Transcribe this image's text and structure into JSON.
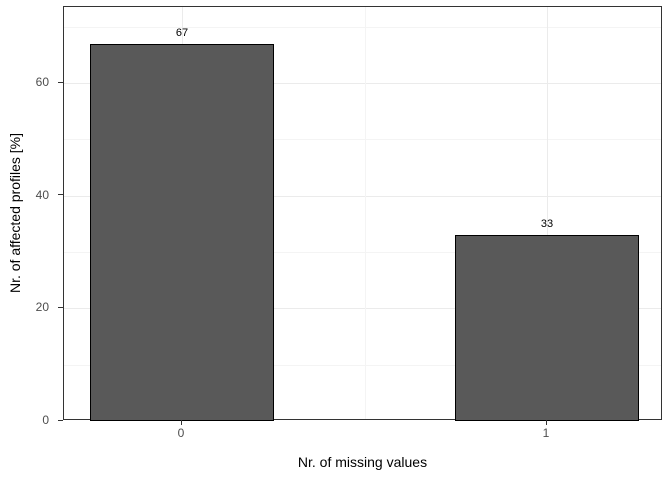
{
  "chart_data": {
    "type": "bar",
    "title": "",
    "xlabel": "Nr. of missing values",
    "ylabel": "Nr. of affected profiles [%]",
    "categories": [
      "0",
      "1"
    ],
    "values": [
      67,
      33
    ],
    "bar_labels": [
      "67",
      "33"
    ],
    "ylim": [
      0,
      73.5
    ],
    "yticks": [
      0,
      20,
      40,
      60
    ],
    "yticks_minor": [
      10,
      30,
      50,
      70
    ],
    "grid": "on",
    "legend": "none",
    "colors": {
      "bar_fill": "#595959",
      "bar_stroke": "#000000",
      "panel_border": "#333333",
      "grid_major": "#ebebeb",
      "grid_minor": "#f4f4f4",
      "tick_label": "#4d4d4d",
      "axis_title": "#000000",
      "background": "#ffffff"
    }
  }
}
